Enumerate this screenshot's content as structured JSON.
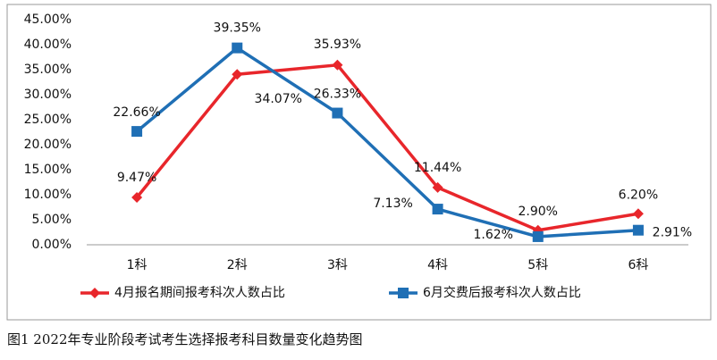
{
  "chart_data": {
    "type": "line",
    "caption": "图1  2022年专业阶段考试考生选择报考科目数量变化趋势图",
    "categories": [
      "1科",
      "2科",
      "3科",
      "4科",
      "5科",
      "6科"
    ],
    "series": [
      {
        "name": "4月报名期间报考科次人数占比",
        "color": "#e8262b",
        "marker": "diamond",
        "values": [
          9.47,
          34.07,
          35.93,
          11.44,
          2.9,
          6.2
        ],
        "value_labels": [
          "9.47%",
          "34.07%",
          "35.93%",
          "11.44%",
          "2.90%",
          "6.20%"
        ]
      },
      {
        "name": "6月交费后报考科次人数占比",
        "color": "#1f6fb5",
        "marker": "square",
        "values": [
          22.66,
          39.35,
          26.33,
          7.13,
          1.62,
          2.91
        ],
        "value_labels": [
          "22.66%",
          "39.35%",
          "26.33%",
          "7.13%",
          "1.62%",
          "2.91%"
        ]
      }
    ],
    "ylim": [
      0,
      45
    ],
    "yticks": [
      {
        "value": 0,
        "label": "0.00%"
      },
      {
        "value": 5,
        "label": "5.00%"
      },
      {
        "value": 10,
        "label": "10.00%"
      },
      {
        "value": 15,
        "label": "15.00%"
      },
      {
        "value": 20,
        "label": "20.00%"
      },
      {
        "value": 25,
        "label": "25.00%"
      },
      {
        "value": 30,
        "label": "30.00%"
      },
      {
        "value": 35,
        "label": "35.00%"
      },
      {
        "value": 40,
        "label": "40.00%"
      },
      {
        "value": 45,
        "label": "45.00%"
      }
    ],
    "grid": false,
    "legend": "bottom"
  }
}
